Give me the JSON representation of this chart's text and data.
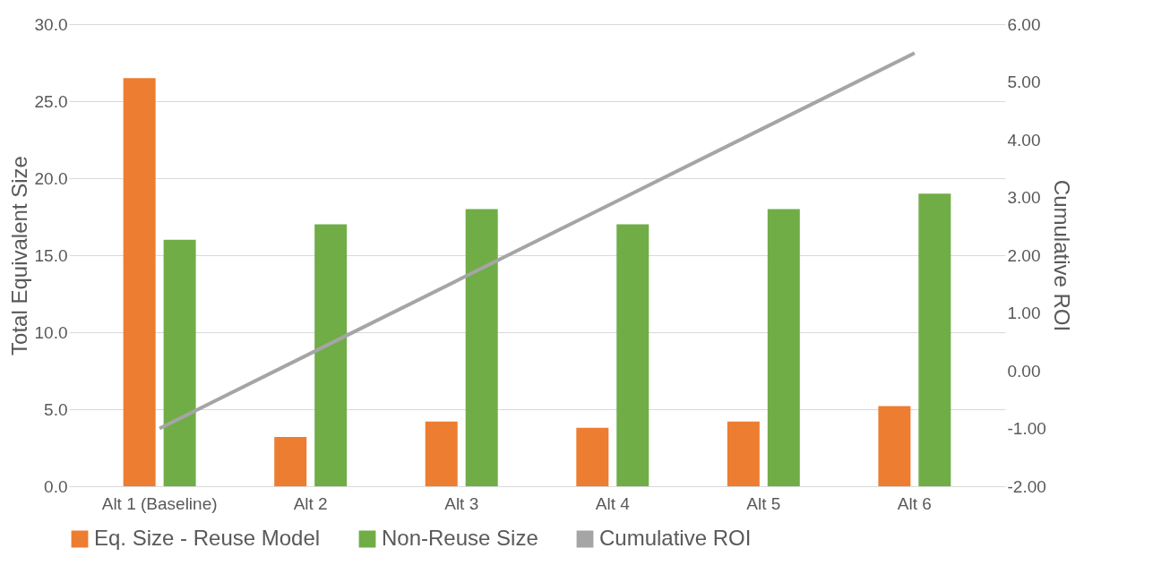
{
  "chart_data": {
    "type": "bar",
    "categories": [
      "Alt 1 (Baseline)",
      "Alt 2",
      "Alt 3",
      "Alt 4",
      "Alt 5",
      "Alt 6"
    ],
    "ylabel": "Total Equivalent Size",
    "y2label": "Cumulative ROI",
    "ylim": [
      0,
      30
    ],
    "yticks": [
      {
        "value": 0,
        "label": "0.0"
      },
      {
        "value": 5,
        "label": "5.0"
      },
      {
        "value": 10,
        "label": "10.0"
      },
      {
        "value": 15,
        "label": "15.0"
      },
      {
        "value": 20,
        "label": "20.0"
      },
      {
        "value": 25,
        "label": "25.0"
      },
      {
        "value": 30,
        "label": "30.0"
      }
    ],
    "y2lim": [
      -2,
      6
    ],
    "y2ticks": [
      {
        "value": -2,
        "label": "-2.00"
      },
      {
        "value": -1,
        "label": "-1.00"
      },
      {
        "value": 0,
        "label": "0.00"
      },
      {
        "value": 1,
        "label": "1.00"
      },
      {
        "value": 2,
        "label": "2.00"
      },
      {
        "value": 3,
        "label": "3.00"
      },
      {
        "value": 4,
        "label": "4.00"
      },
      {
        "value": 5,
        "label": "5.00"
      },
      {
        "value": 6,
        "label": "6.00"
      }
    ],
    "grid": "y",
    "legend": "bottom",
    "series": [
      {
        "name": "Eq. Size - Reuse Model",
        "color": "#ed7d31",
        "values": [
          26.5,
          3.2,
          4.2,
          3.8,
          4.2,
          5.2
        ]
      },
      {
        "name": "Non-Reuse Size",
        "color": "#70ad47",
        "values": [
          16,
          17,
          18,
          17,
          18,
          19
        ]
      },
      {
        "name": "Cumulative ROI",
        "color": "#a5a5a5",
        "type": "line",
        "axis": "y2",
        "values": [
          -1.0,
          0.3,
          1.6,
          2.9,
          4.2,
          5.5
        ]
      }
    ]
  }
}
